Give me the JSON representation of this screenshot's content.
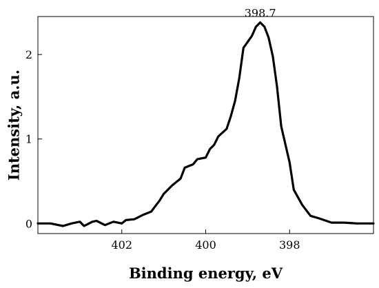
{
  "chart_data": {
    "type": "line",
    "title": "",
    "xlabel": "Binding energy, eV",
    "ylabel": "Intensity, a.u.",
    "x_reversed": true,
    "xlim": [
      404.0,
      396.0
    ],
    "ylim": [
      -0.12,
      2.45
    ],
    "grid": false,
    "legend": "none",
    "x_ticks": [
      402,
      400,
      398
    ],
    "x_tick_labels": [
      "402",
      "400",
      "398"
    ],
    "y_ticks": [
      0,
      1,
      2
    ],
    "y_tick_labels": [
      "0",
      "1",
      "2"
    ],
    "annotations": [
      {
        "text": "398.7",
        "x": 398.7,
        "y": 2.38
      }
    ],
    "series": [
      {
        "color": "#000000",
        "x": [
          404.0,
          403.7,
          403.4,
          403.2,
          403.0,
          402.9,
          402.7,
          402.6,
          402.4,
          402.2,
          402.0,
          401.9,
          401.7,
          401.5,
          401.3,
          401.1,
          401.0,
          400.8,
          400.6,
          400.5,
          400.3,
          400.2,
          400.0,
          399.9,
          399.8,
          399.7,
          399.5,
          399.4,
          399.3,
          399.2,
          399.1,
          398.9,
          398.8,
          398.7,
          398.6,
          398.5,
          398.4,
          398.3,
          398.2,
          398.0,
          397.9,
          397.7,
          397.5,
          397.3,
          397.0,
          396.7,
          396.4,
          396.0
        ],
        "y": [
          0.0,
          0.0,
          -0.03,
          0.0,
          0.02,
          -0.03,
          0.02,
          0.03,
          -0.02,
          0.02,
          0.0,
          0.04,
          0.05,
          0.1,
          0.14,
          0.27,
          0.35,
          0.45,
          0.53,
          0.66,
          0.7,
          0.76,
          0.78,
          0.88,
          0.93,
          1.03,
          1.12,
          1.27,
          1.45,
          1.72,
          2.08,
          2.22,
          2.33,
          2.38,
          2.33,
          2.2,
          1.98,
          1.62,
          1.15,
          0.72,
          0.4,
          0.22,
          0.09,
          0.06,
          0.01,
          0.01,
          0.0,
          0.0
        ]
      }
    ]
  }
}
